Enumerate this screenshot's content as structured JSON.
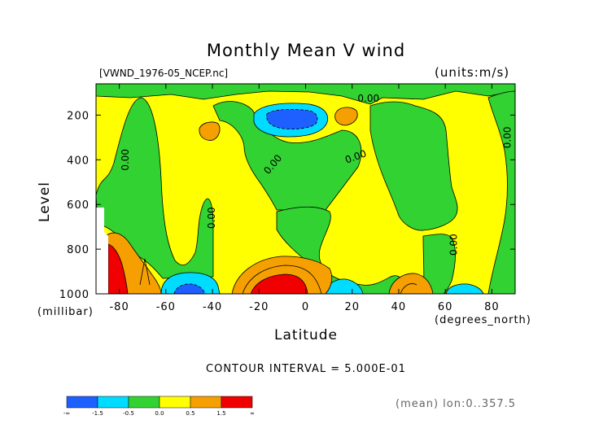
{
  "chart_data": {
    "type": "heatmap",
    "title": "Monthly Mean V wind",
    "dataset_label": "[VWND_1976-05_NCEP.nc]",
    "units": "(units:m/s)",
    "xlabel": "Latitude",
    "xlabel_units": "(degrees_north)",
    "ylabel": "Level",
    "ylabel_units": "(millibar)",
    "x_ticks": [
      -80,
      -60,
      -40,
      -20,
      0,
      20,
      40,
      60,
      80
    ],
    "y_ticks": [
      200,
      400,
      600,
      800,
      1000
    ],
    "xlim": [
      -90,
      90
    ],
    "ylim": [
      1000,
      60
    ],
    "contour_labels": [
      {
        "text": "0.00",
        "x": 27,
        "y": 140,
        "rotate": 0
      },
      {
        "text": "0.00",
        "x": -76,
        "y": 400,
        "rotate": -90
      },
      {
        "text": "0.00",
        "x": -13,
        "y": 430,
        "rotate": -50
      },
      {
        "text": "0.00",
        "x": 22,
        "y": 400,
        "rotate": -20
      },
      {
        "text": "0.00",
        "x": -39,
        "y": 660,
        "rotate": -90
      },
      {
        "text": "0.00",
        "x": 65,
        "y": 780,
        "rotate": -90
      },
      {
        "text": "0.00",
        "x": 88,
        "y": 300,
        "rotate": -90
      }
    ],
    "contour_interval": "CONTOUR INTERVAL = 5.000E-01",
    "colorbar": {
      "colors": [
        "#1e60ff",
        "#00dcff",
        "#32d232",
        "#ffff00",
        "#f5a000",
        "#f00000"
      ],
      "labels": [
        "-∞",
        "-1.5",
        "-0.5",
        "0.0",
        "0.5",
        "1.5",
        "∞"
      ]
    },
    "footer_note": "(mean) lon:0..357.5"
  }
}
